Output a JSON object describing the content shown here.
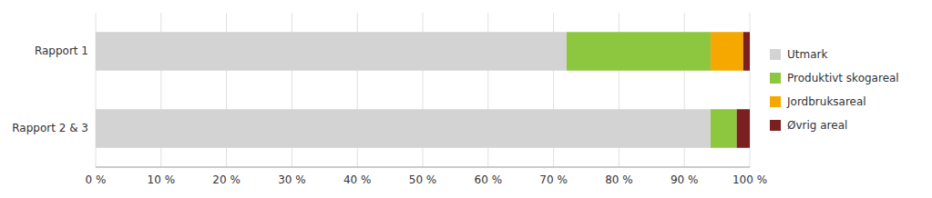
{
  "chart_data": {
    "type": "bar",
    "orientation": "horizontal",
    "stacked": true,
    "categories": [
      "Rapport 1",
      "Rapport 2 & 3"
    ],
    "series": [
      {
        "name": "Utmark",
        "color": "#d3d3d3",
        "values": [
          72,
          94
        ]
      },
      {
        "name": "Produktivt skogareal",
        "color": "#8dc63f",
        "values": [
          22,
          4
        ]
      },
      {
        "name": "Jordbruksareal",
        "color": "#f5a800",
        "values": [
          5,
          0
        ]
      },
      {
        "name": "Øvrig areal",
        "color": "#7b2020",
        "values": [
          1,
          2
        ]
      }
    ],
    "xlim": [
      0,
      100
    ],
    "xticks": [
      {
        "value": 0,
        "label": "0 %"
      },
      {
        "value": 10,
        "label": "10 %"
      },
      {
        "value": 20,
        "label": "20 %"
      },
      {
        "value": 30,
        "label": "30 %"
      },
      {
        "value": 40,
        "label": "40 %"
      },
      {
        "value": 50,
        "label": "50 %"
      },
      {
        "value": 60,
        "label": "60 %"
      },
      {
        "value": 70,
        "label": "70 %"
      },
      {
        "value": 80,
        "label": "80 %"
      },
      {
        "value": 90,
        "label": "90 %"
      },
      {
        "value": 100,
        "label": "100 %"
      }
    ],
    "grid": true,
    "legend": "right"
  }
}
